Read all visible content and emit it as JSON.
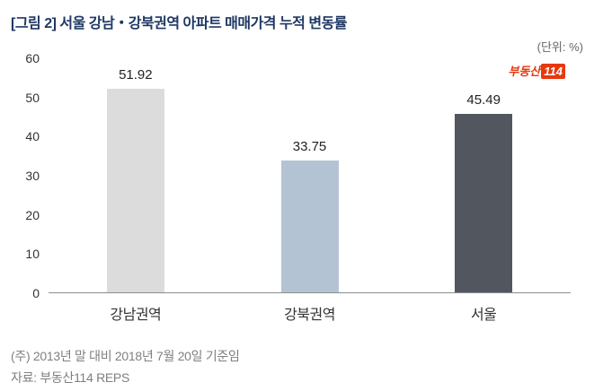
{
  "header": {
    "title": "[그림 2] 서울 강남・강북권역 아파트 매매가격 누적 변동률",
    "unit_label": "(단위: %)"
  },
  "logo": {
    "text": "부동산",
    "badge": "114"
  },
  "chart_data": {
    "type": "bar",
    "title": "[그림 2] 서울 강남・강북권역 아파트 매매가격 누적 변동률",
    "categories": [
      "강남권역",
      "강북권역",
      "서울"
    ],
    "values": [
      51.92,
      33.75,
      45.49
    ],
    "value_labels": [
      "51.92",
      "33.75",
      "45.49"
    ],
    "bar_colors": [
      "#dcdcdc",
      "#b3c3d3",
      "#51565f"
    ],
    "xlabel": "",
    "ylabel": "",
    "unit": "%",
    "ylim": [
      0,
      60
    ],
    "yticks": [
      "60",
      "50",
      "40",
      "30",
      "20",
      "10",
      "0"
    ],
    "grid": false,
    "legend": "none"
  },
  "footnotes": {
    "note1": "(주) 2013년 말 대비 2018년 7월 20일 기준임",
    "note2": "자료: 부동산114 REPS"
  }
}
